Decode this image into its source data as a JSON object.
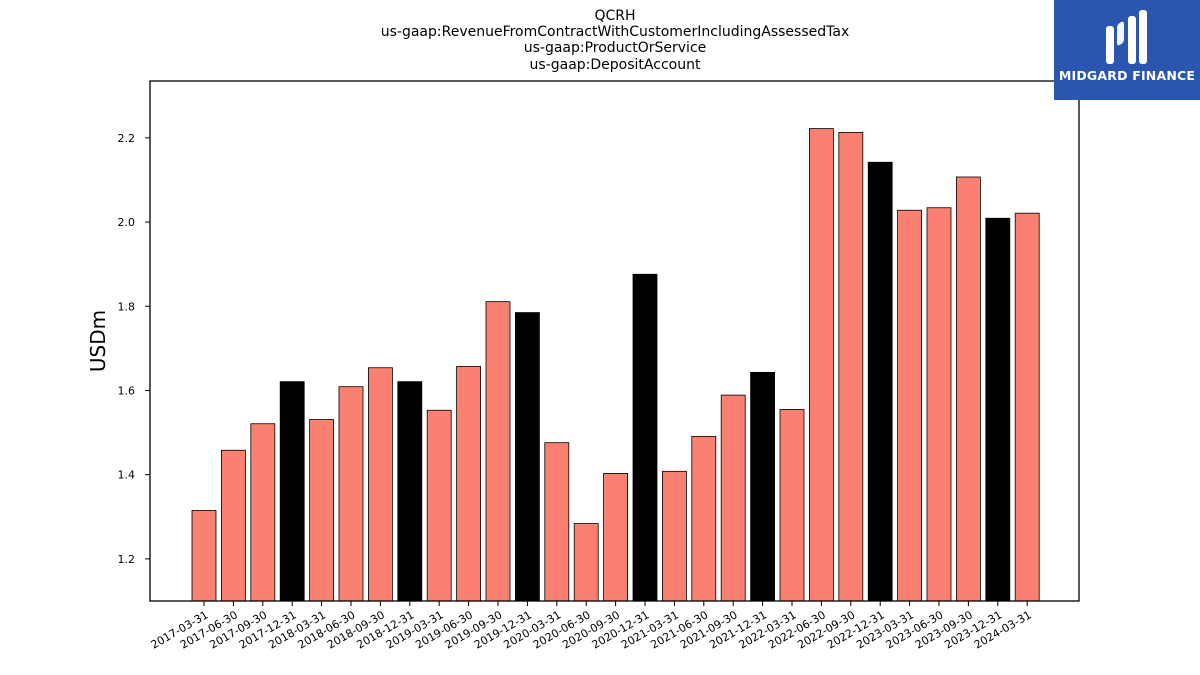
{
  "logo": {
    "text": "MIDGARD FINANCE",
    "icon": "stylized-m-bars-icon",
    "background": "#2b56b0"
  },
  "chart_data": {
    "type": "bar",
    "title_lines": [
      "QCRH",
      "us-gaap:RevenueFromContractWithCustomerIncludingAssessedTax",
      "us-gaap:ProductOrService",
      "us-gaap:DepositAccount"
    ],
    "xlabel": "",
    "ylabel": "USDm",
    "ylim": [
      1.1,
      2.335
    ],
    "yticks": [
      1.2,
      1.4,
      1.6,
      1.8,
      2.0,
      2.2
    ],
    "grid": false,
    "colors": {
      "quarter": "#fa8072",
      "year_end": "#000000"
    },
    "categories": [
      "2017-03-31",
      "2017-06-30",
      "2017-09-30",
      "2017-12-31",
      "2018-03-31",
      "2018-06-30",
      "2018-09-30",
      "2018-12-31",
      "2019-03-31",
      "2019-06-30",
      "2019-09-30",
      "2019-12-31",
      "2020-03-31",
      "2020-06-30",
      "2020-09-30",
      "2020-12-31",
      "2021-03-31",
      "2021-06-30",
      "2021-09-30",
      "2021-12-31",
      "2022-03-31",
      "2022-06-30",
      "2022-09-30",
      "2022-12-31",
      "2023-03-31",
      "2023-06-30",
      "2023-09-30",
      "2023-12-31",
      "2024-03-31"
    ],
    "values": [
      1.315,
      1.458,
      1.521,
      1.621,
      1.531,
      1.609,
      1.654,
      1.621,
      1.553,
      1.657,
      1.811,
      1.785,
      1.476,
      1.284,
      1.403,
      1.876,
      1.408,
      1.491,
      1.589,
      1.643,
      1.555,
      2.222,
      2.213,
      2.142,
      2.028,
      2.034,
      2.107,
      2.009,
      2.021
    ]
  }
}
